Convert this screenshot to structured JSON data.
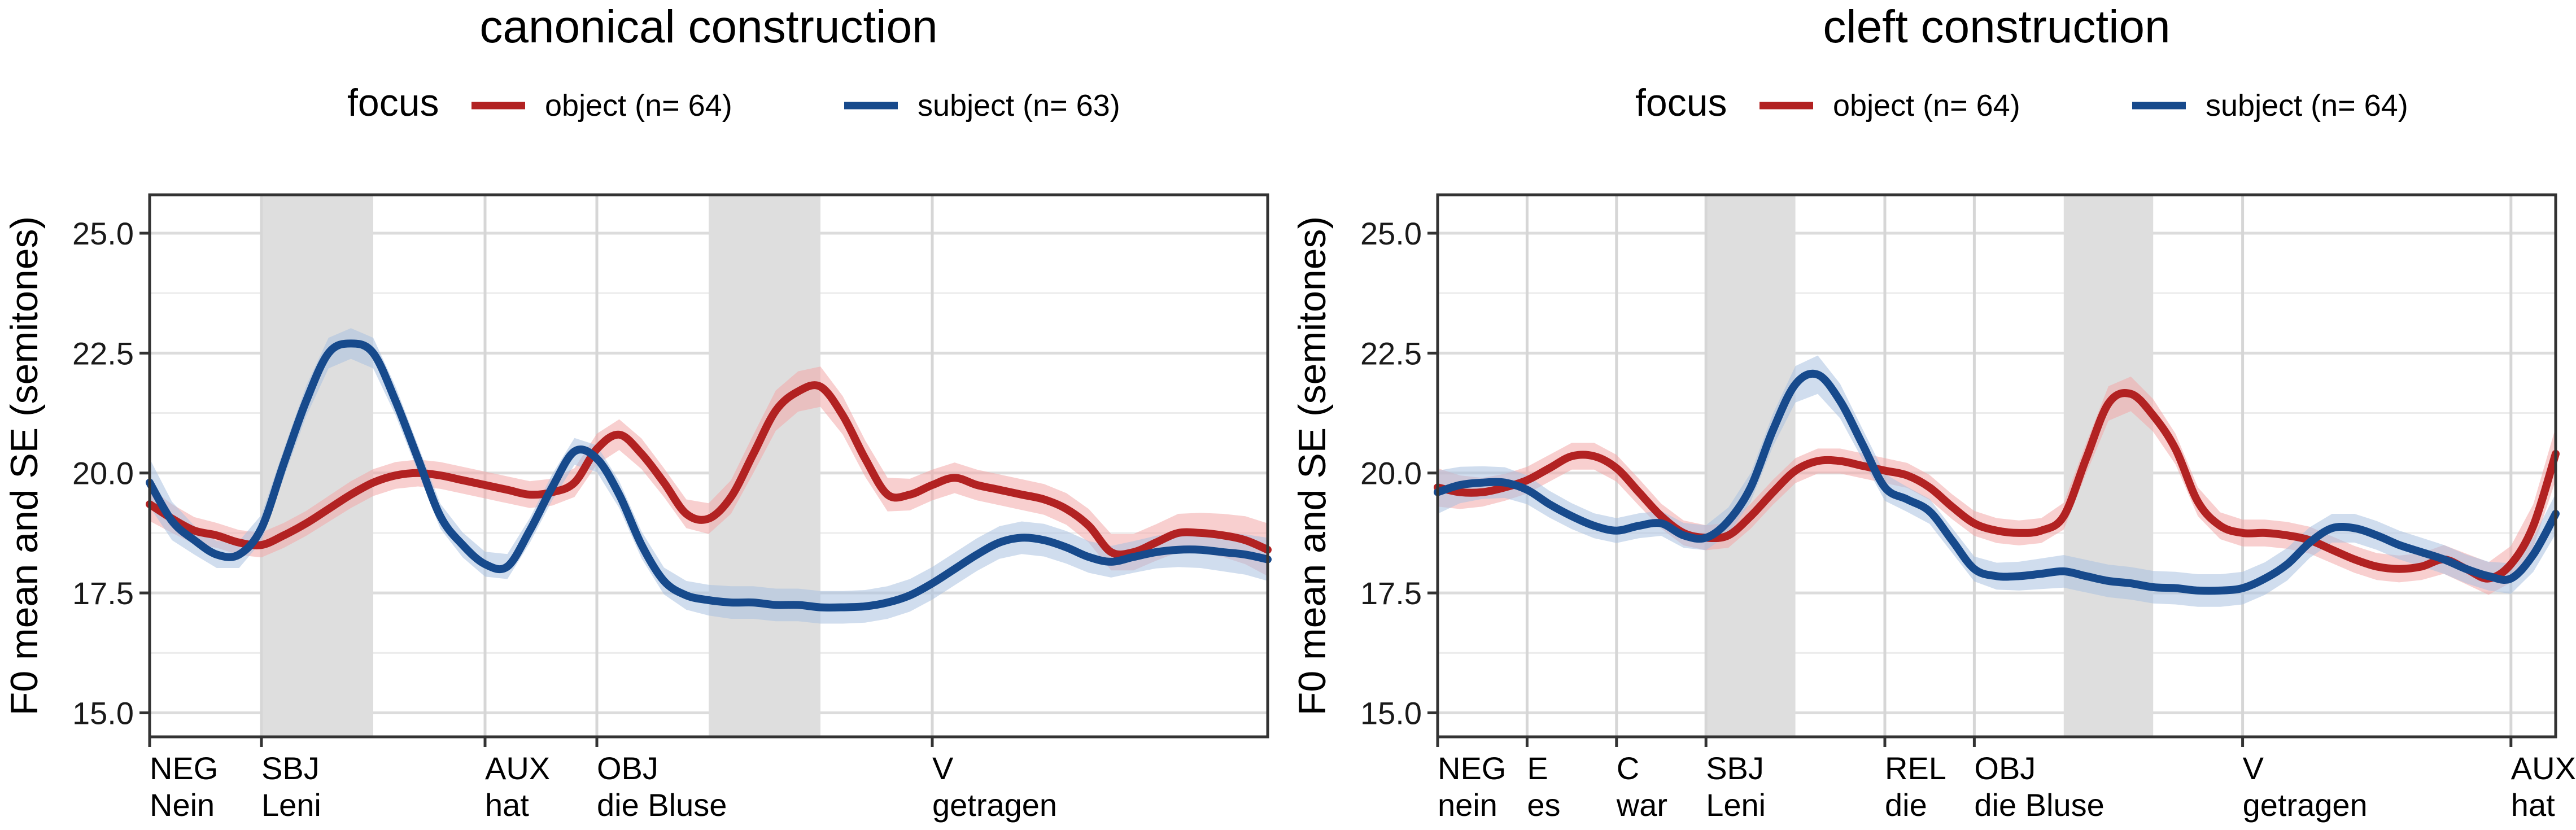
{
  "chart_data": [
    {
      "type": "line",
      "title": "canonical construction",
      "xlabel": "",
      "ylabel": "F0 mean and SE (semitones)",
      "ylim": [
        14.5,
        25.8
      ],
      "xlim": [
        0,
        100
      ],
      "yticks": [
        15.0,
        17.5,
        20.0,
        22.5,
        25.0
      ],
      "ytick_labels": [
        "15.0",
        "17.5",
        "20.0",
        "22.5",
        "25.0"
      ],
      "grid": true,
      "legend": {
        "title": "focus",
        "placement": "top"
      },
      "word_boundaries": [
        {
          "x": 0,
          "label": "NEG",
          "word": "Nein"
        },
        {
          "x": 10,
          "label": "SBJ",
          "word": "Leni"
        },
        {
          "x": 30,
          "label": "AUX",
          "word": "hat"
        },
        {
          "x": 40,
          "label": "OBJ",
          "word": "die Bluse"
        },
        {
          "x": 70,
          "label": "V",
          "word": "getragen"
        }
      ],
      "shaded_regions": [
        [
          10,
          20
        ],
        [
          50,
          60
        ]
      ],
      "series": [
        {
          "name": "object (n= 64)",
          "color": "#B22222",
          "band_color": "#F2A7A7",
          "x": [
            0,
            2,
            4,
            6,
            8,
            10,
            12,
            14,
            16,
            18,
            20,
            22,
            24,
            26,
            28,
            30,
            32,
            34,
            36,
            38,
            40,
            42,
            44,
            46,
            48,
            50,
            52,
            54,
            56,
            58,
            60,
            62,
            64,
            66,
            68,
            70,
            72,
            74,
            76,
            78,
            80,
            82,
            84,
            86,
            88,
            90,
            92,
            94,
            96,
            98,
            100
          ],
          "y": [
            19.35,
            19.05,
            18.8,
            18.7,
            18.55,
            18.5,
            18.7,
            18.95,
            19.25,
            19.55,
            19.8,
            19.95,
            20.0,
            19.95,
            19.85,
            19.75,
            19.65,
            19.55,
            19.6,
            19.8,
            20.5,
            20.8,
            20.4,
            19.8,
            19.15,
            19.05,
            19.5,
            20.4,
            21.3,
            21.7,
            21.8,
            21.2,
            20.3,
            19.55,
            19.55,
            19.75,
            19.9,
            19.75,
            19.65,
            19.55,
            19.45,
            19.25,
            18.9,
            18.35,
            18.35,
            18.55,
            18.75,
            18.75,
            18.7,
            18.6,
            18.4
          ],
          "se": [
            0.35,
            0.3,
            0.28,
            0.26,
            0.26,
            0.26,
            0.26,
            0.26,
            0.27,
            0.28,
            0.28,
            0.28,
            0.28,
            0.28,
            0.28,
            0.28,
            0.28,
            0.28,
            0.28,
            0.3,
            0.32,
            0.32,
            0.32,
            0.3,
            0.3,
            0.32,
            0.35,
            0.4,
            0.42,
            0.42,
            0.42,
            0.4,
            0.38,
            0.35,
            0.33,
            0.32,
            0.32,
            0.32,
            0.32,
            0.32,
            0.32,
            0.33,
            0.35,
            0.38,
            0.38,
            0.38,
            0.4,
            0.42,
            0.45,
            0.5,
            0.55
          ]
        },
        {
          "name": "subject (n= 63)",
          "color": "#174A8C",
          "band_color": "#A9C1E0",
          "x": [
            0,
            2,
            4,
            6,
            8,
            10,
            12,
            14,
            16,
            18,
            20,
            22,
            24,
            26,
            28,
            30,
            32,
            34,
            36,
            38,
            40,
            42,
            44,
            46,
            48,
            50,
            52,
            54,
            56,
            58,
            60,
            62,
            64,
            66,
            68,
            70,
            72,
            74,
            76,
            78,
            80,
            82,
            84,
            86,
            88,
            90,
            92,
            94,
            96,
            98,
            100
          ],
          "y": [
            19.8,
            19.0,
            18.6,
            18.3,
            18.3,
            18.85,
            20.2,
            21.5,
            22.5,
            22.7,
            22.5,
            21.5,
            20.3,
            19.1,
            18.5,
            18.1,
            18.05,
            18.8,
            19.7,
            20.45,
            20.3,
            19.55,
            18.5,
            17.75,
            17.45,
            17.35,
            17.3,
            17.3,
            17.25,
            17.25,
            17.2,
            17.2,
            17.22,
            17.3,
            17.45,
            17.7,
            18.0,
            18.3,
            18.55,
            18.65,
            18.6,
            18.45,
            18.25,
            18.15,
            18.25,
            18.35,
            18.4,
            18.4,
            18.35,
            18.3,
            18.2
          ],
          "se": [
            0.5,
            0.4,
            0.3,
            0.28,
            0.28,
            0.28,
            0.3,
            0.32,
            0.32,
            0.32,
            0.32,
            0.3,
            0.28,
            0.26,
            0.26,
            0.26,
            0.26,
            0.26,
            0.27,
            0.28,
            0.28,
            0.28,
            0.28,
            0.28,
            0.3,
            0.32,
            0.34,
            0.34,
            0.34,
            0.34,
            0.34,
            0.34,
            0.34,
            0.34,
            0.34,
            0.34,
            0.34,
            0.34,
            0.34,
            0.34,
            0.34,
            0.34,
            0.33,
            0.33,
            0.33,
            0.34,
            0.36,
            0.38,
            0.4,
            0.42,
            0.45
          ]
        }
      ]
    },
    {
      "type": "line",
      "title": "cleft construction",
      "xlabel": "",
      "ylabel": "F0 mean and SE (semitones)",
      "ylim": [
        14.5,
        25.8
      ],
      "xlim": [
        0,
        100
      ],
      "yticks": [
        15.0,
        17.5,
        20.0,
        22.5,
        25.0
      ],
      "ytick_labels": [
        "15.0",
        "17.5",
        "20.0",
        "22.5",
        "25.0"
      ],
      "grid": true,
      "legend": {
        "title": "focus",
        "placement": "top"
      },
      "word_boundaries": [
        {
          "x": 0,
          "label": "NEG",
          "word": "nein"
        },
        {
          "x": 8,
          "label": "E",
          "word": "es"
        },
        {
          "x": 16,
          "label": "C",
          "word": "war"
        },
        {
          "x": 24,
          "label": "SBJ",
          "word": "Leni"
        },
        {
          "x": 40,
          "label": "REL",
          "word": "die"
        },
        {
          "x": 48,
          "label": "OBJ",
          "word": "die Bluse"
        },
        {
          "x": 72,
          "label": "V",
          "word": "getragen"
        },
        {
          "x": 96,
          "label": "AUX",
          "word": "hat"
        }
      ],
      "shaded_regions": [
        [
          24,
          32
        ],
        [
          56,
          64
        ]
      ],
      "series": [
        {
          "name": "object (n= 64)",
          "color": "#B22222",
          "band_color": "#F2A7A7",
          "x": [
            0,
            2,
            4,
            6,
            8,
            10,
            12,
            14,
            16,
            18,
            20,
            22,
            24,
            26,
            28,
            30,
            32,
            34,
            36,
            38,
            40,
            42,
            44,
            46,
            48,
            50,
            52,
            54,
            56,
            58,
            60,
            62,
            64,
            66,
            68,
            70,
            72,
            74,
            76,
            78,
            80,
            82,
            84,
            86,
            88,
            90,
            92,
            94,
            96,
            98,
            100
          ],
          "y": [
            19.7,
            19.6,
            19.6,
            19.7,
            19.85,
            20.1,
            20.35,
            20.35,
            20.1,
            19.6,
            19.1,
            18.75,
            18.65,
            18.7,
            19.1,
            19.6,
            20.05,
            20.25,
            20.25,
            20.15,
            20.05,
            19.95,
            19.7,
            19.3,
            18.95,
            18.8,
            18.75,
            18.8,
            19.1,
            20.3,
            21.45,
            21.65,
            21.2,
            20.5,
            19.4,
            18.9,
            18.75,
            18.75,
            18.7,
            18.6,
            18.4,
            18.2,
            18.05,
            18.0,
            18.05,
            18.2,
            18.0,
            17.8,
            18.1,
            18.9,
            20.4
          ],
          "se": [
            0.4,
            0.35,
            0.3,
            0.28,
            0.28,
            0.28,
            0.28,
            0.28,
            0.28,
            0.28,
            0.26,
            0.26,
            0.26,
            0.26,
            0.26,
            0.26,
            0.26,
            0.26,
            0.26,
            0.26,
            0.26,
            0.26,
            0.26,
            0.26,
            0.26,
            0.26,
            0.26,
            0.26,
            0.28,
            0.32,
            0.36,
            0.36,
            0.34,
            0.32,
            0.3,
            0.28,
            0.28,
            0.28,
            0.28,
            0.28,
            0.28,
            0.28,
            0.28,
            0.28,
            0.28,
            0.3,
            0.32,
            0.34,
            0.38,
            0.45,
            0.55
          ]
        },
        {
          "name": "subject (n= 64)",
          "color": "#174A8C",
          "band_color": "#A9C1E0",
          "x": [
            0,
            2,
            4,
            6,
            8,
            10,
            12,
            14,
            16,
            18,
            20,
            22,
            24,
            26,
            28,
            30,
            32,
            34,
            36,
            38,
            40,
            42,
            44,
            46,
            48,
            50,
            52,
            54,
            56,
            58,
            60,
            62,
            64,
            66,
            68,
            70,
            72,
            74,
            76,
            78,
            80,
            82,
            84,
            86,
            88,
            90,
            92,
            94,
            96,
            98,
            100
          ],
          "y": [
            19.6,
            19.75,
            19.8,
            19.8,
            19.65,
            19.35,
            19.1,
            18.9,
            18.8,
            18.9,
            18.95,
            18.7,
            18.65,
            19.0,
            19.7,
            20.9,
            21.85,
            22.05,
            21.5,
            20.6,
            19.7,
            19.45,
            19.2,
            18.6,
            18.0,
            17.85,
            17.85,
            17.9,
            17.95,
            17.85,
            17.75,
            17.7,
            17.62,
            17.6,
            17.55,
            17.55,
            17.6,
            17.8,
            18.1,
            18.55,
            18.85,
            18.85,
            18.7,
            18.5,
            18.35,
            18.2,
            18.0,
            17.85,
            17.8,
            18.3,
            19.15
          ],
          "se": [
            0.45,
            0.38,
            0.34,
            0.32,
            0.3,
            0.28,
            0.27,
            0.26,
            0.26,
            0.26,
            0.26,
            0.26,
            0.26,
            0.28,
            0.3,
            0.34,
            0.38,
            0.4,
            0.36,
            0.32,
            0.28,
            0.26,
            0.26,
            0.26,
            0.26,
            0.28,
            0.3,
            0.32,
            0.34,
            0.34,
            0.34,
            0.34,
            0.34,
            0.34,
            0.34,
            0.34,
            0.34,
            0.34,
            0.34,
            0.32,
            0.3,
            0.3,
            0.3,
            0.3,
            0.3,
            0.3,
            0.3,
            0.3,
            0.32,
            0.36,
            0.42
          ]
        }
      ]
    }
  ]
}
